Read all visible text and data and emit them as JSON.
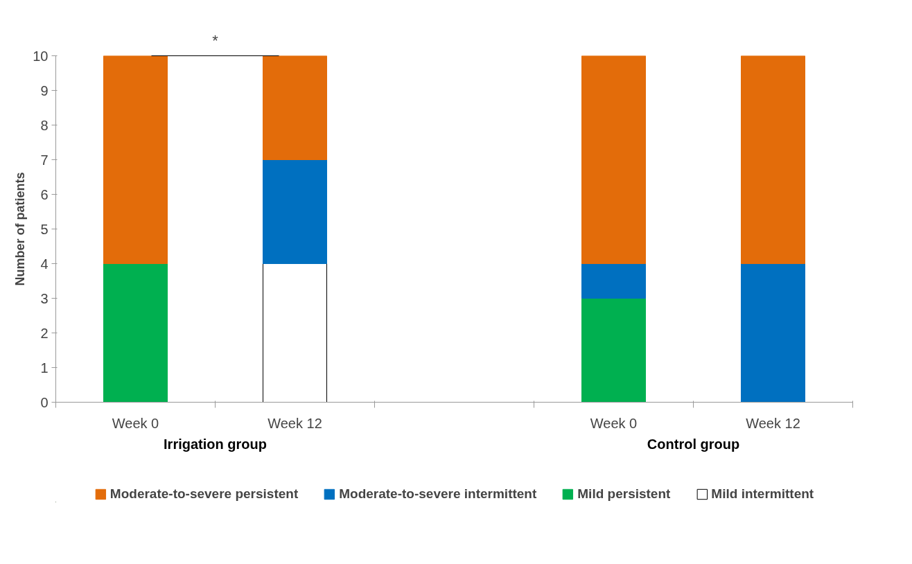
{
  "chart_data": {
    "type": "bar",
    "stacked": true,
    "ylabel": "Number of patients",
    "categories": [
      "Week 0",
      "Week 12",
      null,
      "Week 0",
      "Week 12"
    ],
    "series": [
      {
        "name": "Mild intermittent",
        "color": "#ffffff",
        "values": [
          0,
          4,
          null,
          0,
          0
        ]
      },
      {
        "name": "Mild persistent",
        "color": "#00b050",
        "values": [
          4,
          0,
          null,
          3,
          0
        ]
      },
      {
        "name": "Moderate-to-severe intermittent",
        "color": "#0070c0",
        "values": [
          0,
          3,
          null,
          1,
          4
        ]
      },
      {
        "name": "Moderate-to-severe persistent",
        "color": "#e36c0a",
        "values": [
          6,
          3,
          null,
          6,
          6
        ]
      }
    ],
    "ylim": [
      0,
      10
    ],
    "yticks": [
      0,
      1,
      2,
      3,
      4,
      5,
      6,
      7,
      8,
      9,
      10
    ],
    "grid": false,
    "legend": "bottom",
    "annotations": [
      "Irrigation group",
      "Control group",
      "*"
    ]
  }
}
